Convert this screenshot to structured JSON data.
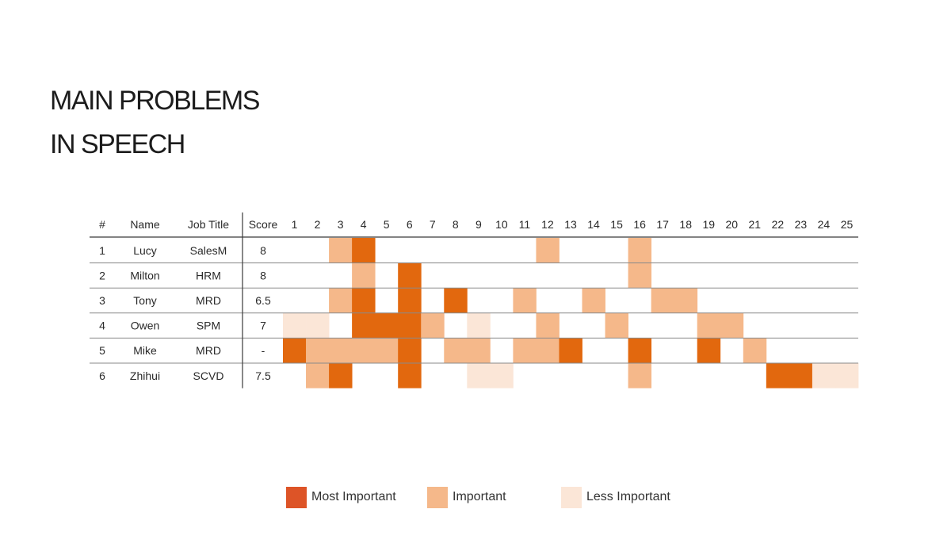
{
  "title": {
    "line1": "MAIN PROBLEMS",
    "line2": "IN SPEECH"
  },
  "colors": {
    "most": "#e2680e",
    "important": "#f5b88a",
    "less": "#fbe6d7",
    "legend_most": "#dd5427"
  },
  "chart_data": {
    "type": "table",
    "columns": [
      "#",
      "Name",
      "Job Title",
      "Score"
    ],
    "problem_numbers": [
      "1",
      "2",
      "3",
      "4",
      "5",
      "6",
      "7",
      "8",
      "9",
      "10",
      "11",
      "12",
      "13",
      "14",
      "15",
      "16",
      "17",
      "18",
      "19",
      "20",
      "21",
      "22",
      "23",
      "24",
      "25"
    ],
    "rows": [
      {
        "num": "1",
        "name": "Lucy",
        "job": "SalesM",
        "score": "8",
        "levels": [
          0,
          0,
          2,
          3,
          0,
          0,
          0,
          0,
          0,
          0,
          0,
          2,
          0,
          0,
          0,
          2,
          0,
          0,
          0,
          0,
          0,
          0,
          0,
          0,
          0
        ]
      },
      {
        "num": "2",
        "name": "Milton",
        "job": "HRM",
        "score": "8",
        "levels": [
          0,
          0,
          0,
          2,
          0,
          3,
          0,
          0,
          0,
          0,
          0,
          0,
          0,
          0,
          0,
          2,
          0,
          0,
          0,
          0,
          0,
          0,
          0,
          0,
          0
        ]
      },
      {
        "num": "3",
        "name": "Tony",
        "job": "MRD",
        "score": "6.5",
        "levels": [
          0,
          0,
          2,
          3,
          0,
          3,
          0,
          3,
          0,
          0,
          2,
          0,
          0,
          2,
          0,
          0,
          2,
          2,
          0,
          0,
          0,
          0,
          0,
          0,
          0
        ]
      },
      {
        "num": "4",
        "name": "Owen",
        "job": "SPM",
        "score": "7",
        "levels": [
          1,
          1,
          0,
          3,
          3,
          3,
          2,
          0,
          1,
          0,
          0,
          2,
          0,
          0,
          2,
          0,
          0,
          0,
          2,
          2,
          0,
          0,
          0,
          0,
          0
        ]
      },
      {
        "num": "5",
        "name": "Mike",
        "job": "MRD",
        "score": "-",
        "levels": [
          3,
          2,
          2,
          2,
          2,
          3,
          0,
          2,
          2,
          0,
          2,
          2,
          3,
          0,
          0,
          3,
          0,
          0,
          3,
          0,
          2,
          0,
          0,
          0,
          0
        ]
      },
      {
        "num": "6",
        "name": "Zhihui",
        "job": "SCVD",
        "score": "7.5",
        "levels": [
          0,
          2,
          3,
          0,
          0,
          3,
          0,
          0,
          1,
          1,
          0,
          0,
          0,
          0,
          0,
          2,
          0,
          0,
          0,
          0,
          0,
          3,
          3,
          1,
          1
        ]
      }
    ],
    "legend": [
      {
        "key": "most",
        "label": "Most Important"
      },
      {
        "key": "important",
        "label": "Important"
      },
      {
        "key": "less",
        "label": "Less Important"
      }
    ]
  }
}
